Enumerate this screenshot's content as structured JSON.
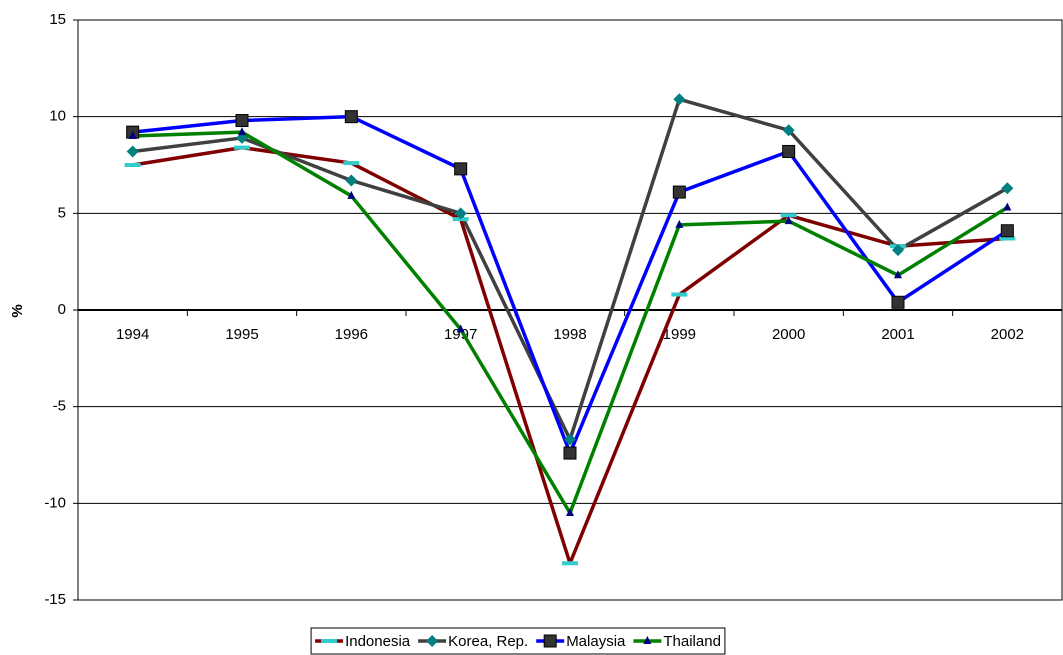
{
  "chart_data": {
    "type": "line",
    "y_label": "%",
    "categories": [
      "1994",
      "1995",
      "1996",
      "1997",
      "1998",
      "1999",
      "2000",
      "2001",
      "2002"
    ],
    "series": [
      {
        "name": "Indonesia",
        "color": "#800000",
        "marker": "dash",
        "marker_color": "#33CCCC",
        "values": [
          7.5,
          8.4,
          7.6,
          4.7,
          -13.1,
          0.8,
          4.9,
          3.3,
          3.7
        ]
      },
      {
        "name": "Korea, Rep.",
        "color": "#404040",
        "marker": "diamond",
        "marker_color": "#008080",
        "values": [
          8.2,
          8.9,
          6.7,
          5.0,
          -6.7,
          10.9,
          9.3,
          3.1,
          6.3
        ]
      },
      {
        "name": "Malaysia",
        "color": "#0000FF",
        "marker": "square",
        "marker_color": "#333333",
        "values": [
          9.2,
          9.8,
          10.0,
          7.3,
          -7.4,
          6.1,
          8.2,
          0.4,
          4.1
        ]
      },
      {
        "name": "Thailand",
        "color": "#008000",
        "marker": "triangle",
        "marker_color": "#000080",
        "values": [
          9.0,
          9.2,
          5.9,
          -1.0,
          -10.5,
          4.4,
          4.6,
          1.8,
          5.3
        ]
      }
    ],
    "ylim": [
      -15,
      15
    ],
    "yticks": [
      -15,
      -10,
      -5,
      0,
      5,
      10,
      15
    ],
    "grid": true,
    "legend": "bottom"
  }
}
